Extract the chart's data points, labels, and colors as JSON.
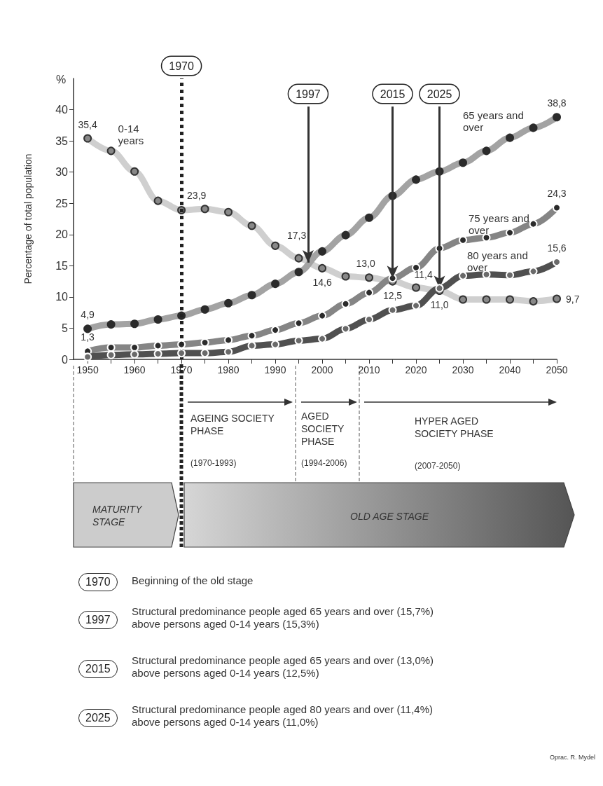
{
  "chart_data": {
    "type": "line",
    "ylabel": "Percentage of total population",
    "x": [
      1950,
      1955,
      1960,
      1965,
      1970,
      1975,
      1980,
      1985,
      1990,
      1995,
      2000,
      2005,
      2010,
      2015,
      2020,
      2025,
      2030,
      2035,
      2040,
      2045,
      2050
    ],
    "xlim": [
      1947,
      2050
    ],
    "xticks": [
      1950,
      {
        "value": 1955,
        "label": null
      },
      1960,
      {
        "value": 1965,
        "label": null
      },
      1970,
      {
        "value": 1975,
        "label": null
      },
      1980,
      {
        "value": 1985,
        "label": null
      },
      1990,
      {
        "value": 1995,
        "label": null
      },
      2000,
      {
        "value": 2005,
        "label": null
      },
      2010,
      {
        "value": 2015,
        "label": null
      },
      2020,
      {
        "value": 2025,
        "label": null
      },
      2030,
      {
        "value": 2035,
        "label": null
      },
      2040,
      {
        "value": 2045,
        "label": null
      },
      2050
    ],
    "ylim": [
      0,
      45
    ],
    "yticks": [
      0,
      5,
      10,
      15,
      20,
      25,
      30,
      35,
      40
    ],
    "grid": false,
    "legend": false,
    "marker": "circle",
    "line_style": "solid",
    "series": [
      {
        "name": "0-14 years",
        "color": "#cfcfcf",
        "values": [
          35.4,
          33.4,
          30.1,
          25.4,
          23.9,
          24.1,
          23.6,
          21.4,
          18.2,
          16.2,
          14.6,
          13.3,
          13.1,
          12.5,
          11.5,
          11.0,
          9.6,
          9.6,
          9.6,
          9.3,
          9.7
        ],
        "value_labels": [
          "35,4",
          null,
          null,
          null,
          "23,9",
          null,
          null,
          null,
          null,
          null,
          "14,6",
          null,
          null,
          "12,5",
          null,
          "11,0",
          null,
          null,
          null,
          null,
          "9,7"
        ]
      },
      {
        "name": "65 years and over",
        "color": "#a3a3a3",
        "values": [
          4.9,
          5.6,
          5.7,
          6.4,
          7.0,
          8.0,
          9.0,
          10.3,
          12.1,
          14.0,
          17.3,
          19.9,
          22.7,
          26.2,
          28.8,
          30.1,
          31.5,
          33.4,
          35.5,
          37.1,
          38.8
        ],
        "value_labels": [
          "4,9",
          null,
          null,
          null,
          null,
          null,
          null,
          null,
          null,
          null,
          "17,3",
          null,
          null,
          null,
          null,
          null,
          null,
          null,
          null,
          null,
          "38,8"
        ]
      },
      {
        "name": "75 years and over",
        "color": "#858585",
        "values": [
          1.3,
          1.9,
          1.9,
          2.2,
          2.4,
          2.7,
          3.1,
          3.8,
          4.7,
          5.8,
          7.0,
          8.9,
          10.7,
          13.0,
          14.7,
          17.8,
          19.1,
          19.5,
          20.3,
          21.7,
          24.3
        ],
        "value_labels": [
          "1,3",
          null,
          null,
          null,
          null,
          null,
          null,
          null,
          null,
          null,
          null,
          null,
          null,
          "13,0",
          null,
          null,
          null,
          null,
          null,
          null,
          "24,3"
        ]
      },
      {
        "name": "80 years and over",
        "color": "#505050",
        "values": [
          0.4,
          0.7,
          0.8,
          0.9,
          1.0,
          1.0,
          1.2,
          2.2,
          2.4,
          3.0,
          3.3,
          4.9,
          6.4,
          7.9,
          8.6,
          11.4,
          13.4,
          13.6,
          13.5,
          14.1,
          15.6
        ],
        "value_labels": [
          null,
          null,
          null,
          null,
          null,
          null,
          null,
          null,
          null,
          null,
          null,
          null,
          null,
          null,
          null,
          "11,4",
          null,
          null,
          null,
          null,
          "15,6"
        ]
      }
    ],
    "ref_lines": [
      {
        "axis": "x",
        "value": 1970,
        "label": "1970",
        "color": "#222222",
        "line_style": "dotted"
      }
    ],
    "annotations": [
      "%",
      {
        "text": "1997",
        "x": 1997,
        "y": 15.5
      },
      {
        "text": "2015",
        "x": 2015,
        "y": 13.0
      },
      {
        "text": "2025",
        "x": 2025,
        "y": 11.4
      },
      "AGEING SOCIETY PHASE",
      "(1970-1993)",
      "AGED SOCIETY PHASE",
      "(1994-2006)",
      "HYPER AGED SOCIETY PHASE",
      "(2007-2050)",
      "MATURITY STAGE",
      "OLD AGE STAGE",
      "Beginning of the old stage",
      "Structural predominance people aged 65 years and over (15,7%) above persons aged 0-14 years (15,3%)",
      "Structural predominance people aged 65 years and over (13,0%) above persons aged 0-14 years (12,5%)",
      "Structural predominance people aged 80 years and over (11,4%) above persons aged 0-14 years (11,0%)",
      "Oprac. R. Mydel"
    ]
  }
}
